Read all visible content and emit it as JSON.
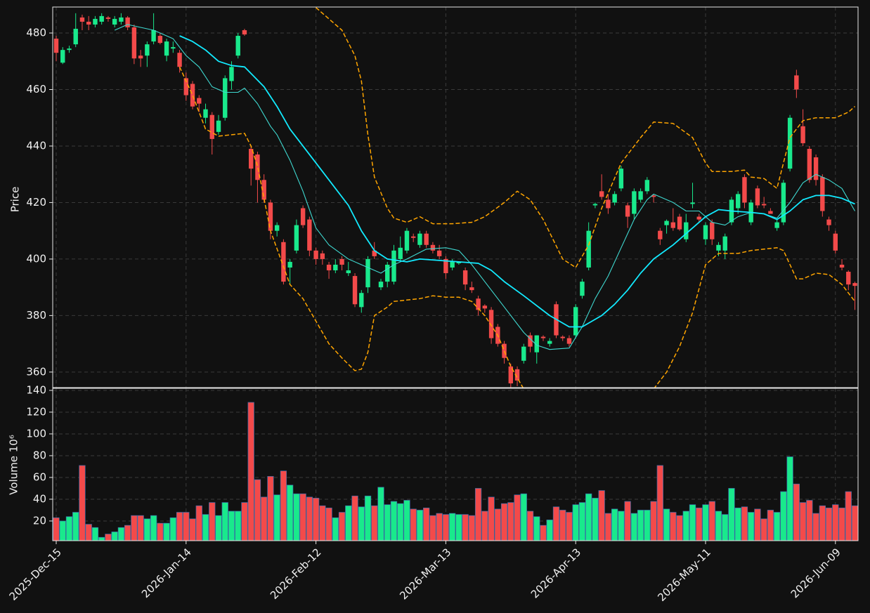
{
  "chart_data": {
    "type": "candlestick",
    "y_label": "Price",
    "categories": [
      "2025-Dec-15",
      null,
      null,
      null,
      null,
      null,
      null,
      null,
      null,
      null,
      null,
      null,
      null,
      null,
      null,
      null,
      null,
      null,
      null,
      null,
      "2026-Jan-14",
      null,
      null,
      null,
      null,
      null,
      null,
      null,
      null,
      null,
      null,
      null,
      null,
      null,
      null,
      null,
      null,
      null,
      null,
      null,
      "2026-Feb-12",
      null,
      null,
      null,
      null,
      null,
      null,
      null,
      null,
      null,
      null,
      null,
      null,
      null,
      null,
      null,
      null,
      null,
      null,
      null,
      "2026-Mar-13",
      null,
      null,
      null,
      null,
      null,
      null,
      null,
      null,
      null,
      null,
      null,
      null,
      null,
      null,
      null,
      null,
      null,
      null,
      null,
      "2026-Apr-13",
      null,
      null,
      null,
      null,
      null,
      null,
      null,
      null,
      null,
      null,
      null,
      null,
      null,
      null,
      null,
      null,
      null,
      null,
      null,
      "2026-May-11",
      null,
      null,
      null,
      null,
      null,
      null,
      null,
      null,
      null,
      null,
      null,
      null,
      null,
      null,
      null,
      null,
      null,
      null,
      null,
      "2026-Jun-09",
      null,
      null,
      null
    ],
    "open": [
      478,
      469.5,
      474,
      476,
      485.5,
      484,
      483,
      484,
      485.5,
      483,
      484,
      485.5,
      482,
      472,
      472,
      477,
      479,
      472,
      474.5,
      473,
      464,
      462,
      457,
      450,
      451,
      445,
      450,
      463,
      472,
      481,
      439,
      437,
      428,
      420,
      410,
      406,
      397,
      403,
      418,
      414,
      403,
      402,
      398,
      396,
      400,
      395,
      394,
      383,
      390,
      403,
      390,
      392,
      392,
      400,
      403,
      408,
      405,
      409,
      405,
      403,
      400,
      397,
      398.5,
      396,
      390,
      386,
      383.5,
      382,
      376,
      370,
      362,
      361,
      364,
      373,
      367,
      372.5,
      370,
      384,
      372.5,
      372,
      373,
      387,
      397,
      419,
      424,
      421,
      420,
      425,
      419,
      416,
      421,
      424,
      422.5,
      410,
      412,
      413,
      415,
      407,
      419.5,
      415,
      407,
      413,
      403,
      403,
      413,
      418,
      429,
      413,
      425,
      419.5,
      417,
      411,
      413,
      432,
      465,
      447,
      439,
      436,
      429,
      414,
      409,
      398,
      395.5,
      391.5
    ],
    "high": [
      479,
      475,
      475.5,
      487,
      486.5,
      486,
      486,
      487,
      486,
      486,
      487,
      486,
      483,
      474,
      477,
      487,
      480,
      478,
      477,
      474,
      466,
      463,
      458,
      455,
      452,
      451,
      465,
      470,
      480,
      481.5,
      440,
      438,
      430,
      421,
      413,
      407,
      400,
      414,
      419,
      415,
      404,
      403,
      399,
      400,
      401,
      399,
      395,
      389,
      401,
      406,
      393,
      399,
      405,
      408,
      411,
      409,
      410,
      410,
      406,
      405,
      401,
      400,
      399,
      397,
      392,
      387,
      384,
      383,
      377,
      371,
      363,
      362,
      370,
      374,
      373,
      373,
      372,
      385,
      373,
      373,
      384,
      393,
      413,
      420,
      430,
      423,
      424,
      433,
      420,
      425,
      425,
      429,
      423,
      411,
      414,
      418,
      416,
      416,
      427,
      416,
      413,
      414,
      406,
      409,
      422,
      424,
      430,
      421,
      426,
      422,
      418,
      414,
      428,
      451,
      467,
      453,
      440,
      437,
      430,
      415,
      410,
      400,
      396,
      392
    ],
    "low": [
      470,
      469,
      473,
      475,
      481,
      481,
      482,
      483,
      484,
      482,
      483,
      481,
      469,
      468,
      468,
      476,
      476,
      470,
      473,
      466,
      456,
      453,
      452,
      448,
      437,
      444,
      449,
      460,
      471,
      479,
      426,
      420,
      420,
      407,
      408,
      391,
      391,
      402,
      411,
      401,
      398,
      398,
      393,
      395,
      396,
      394,
      383,
      381,
      388,
      400,
      389,
      390,
      391,
      399,
      402,
      406,
      404,
      404,
      402,
      400,
      393,
      396,
      398,
      389,
      388,
      380,
      381,
      370,
      369,
      363,
      353,
      355,
      363,
      367,
      363,
      371,
      369,
      372,
      371,
      369,
      372,
      386,
      396,
      418,
      421,
      416,
      419,
      424,
      411,
      414,
      420,
      423,
      420,
      405,
      409,
      410,
      410,
      406,
      418,
      413,
      405,
      405,
      401,
      400,
      412,
      416,
      418,
      412,
      418,
      418,
      416,
      410,
      412,
      431,
      457,
      440,
      427,
      426,
      415,
      410,
      402,
      396,
      389,
      382
    ],
    "close": [
      473,
      474,
      474.5,
      481.5,
      484,
      483,
      485,
      486,
      485,
      485,
      485.5,
      482,
      471,
      471,
      476,
      481,
      476.5,
      477,
      475,
      468,
      458,
      454,
      455,
      453,
      442.5,
      449,
      464,
      468,
      479,
      479.5,
      432,
      428,
      421,
      410,
      412,
      392,
      399,
      412,
      412,
      403,
      400,
      400,
      396,
      398,
      398,
      396,
      384,
      388,
      400,
      401,
      392,
      398,
      403,
      404,
      410,
      407.5,
      409,
      405,
      403,
      401,
      395,
      399,
      399,
      391,
      389,
      382,
      382.5,
      372,
      370,
      365,
      356,
      357,
      369,
      369,
      373,
      372,
      371,
      373,
      372,
      370,
      383,
      392,
      410,
      419.5,
      422,
      418,
      423,
      432,
      415,
      424,
      424,
      428,
      422,
      407,
      413.5,
      411,
      410.5,
      413,
      420,
      414,
      412,
      407,
      405,
      408,
      421,
      423,
      420,
      420,
      419,
      419,
      416,
      413,
      427,
      450,
      460,
      441,
      428,
      428,
      417,
      412,
      403,
      397,
      391,
      390.5
    ],
    "up_color": "#19e98c",
    "down_color": "#f34a4a",
    "ylim": [
      354.5,
      489.2
    ],
    "yticks": [
      360,
      380,
      400,
      420,
      440,
      460,
      480
    ],
    "grid": true,
    "overlays": [
      {
        "color": "#3fd8d0",
        "weight": "thin",
        "style": "solid",
        "x": [
          9,
          11,
          13,
          15,
          18,
          20,
          22,
          24,
          26,
          28,
          29,
          31,
          33,
          34,
          36,
          38,
          40,
          42,
          45,
          47,
          50,
          52,
          54,
          57,
          60,
          62,
          64,
          66,
          69,
          72,
          74,
          76,
          79,
          81,
          83,
          85,
          87,
          89,
          91,
          92,
          95,
          97,
          99,
          101,
          103,
          105,
          107,
          109,
          111,
          113,
          115,
          117,
          119,
          121,
          123
        ],
        "values": [
          481,
          483,
          482,
          481,
          478,
          472,
          468,
          461,
          459,
          459,
          460.5,
          455,
          447,
          444,
          435,
          424,
          411,
          405,
          400,
          398,
          395,
          398,
          400,
          403.5,
          404,
          403,
          398,
          392,
          383,
          374,
          369.5,
          368,
          368.5,
          376,
          386,
          394,
          404,
          414,
          421,
          423,
          420,
          417,
          417,
          413,
          412,
          415,
          416.5,
          416,
          414.5,
          420,
          427,
          430,
          428,
          425,
          417
        ]
      },
      {
        "color": "#12eaff",
        "weight": "thick",
        "style": "solid",
        "x": [
          19,
          21,
          23,
          25,
          27,
          29,
          32,
          34,
          36,
          40,
          43,
          45,
          47,
          49,
          51,
          54,
          56,
          59,
          62,
          65,
          67,
          69,
          72,
          76,
          79,
          81,
          84,
          86,
          88,
          90,
          92,
          95,
          98,
          100,
          102,
          104,
          107,
          109,
          111,
          113,
          115,
          117,
          119,
          121,
          123
        ],
        "values": [
          479,
          477,
          474,
          470,
          468.5,
          468,
          461,
          454,
          446,
          434,
          425,
          419,
          410,
          403,
          400,
          399,
          400,
          399.5,
          399,
          398.5,
          396,
          392,
          387,
          380,
          376,
          376,
          380,
          384,
          389,
          395,
          400,
          405,
          411,
          415,
          417.5,
          417,
          416.5,
          416,
          414,
          417,
          421,
          422.5,
          422.5,
          421.5,
          419.5
        ]
      },
      {
        "color": "#ffa500",
        "weight": "thin",
        "style": "dashed",
        "x": [
          40,
          42,
          44,
          46,
          47,
          48,
          49,
          51,
          52,
          54,
          56,
          58,
          61,
          64,
          66,
          69,
          71,
          73,
          75,
          78,
          80,
          82,
          84,
          87,
          90,
          92,
          95,
          98,
          100,
          101,
          104,
          106,
          107,
          109,
          111,
          113,
          115,
          117,
          120,
          122,
          123
        ],
        "values": [
          489,
          485,
          481,
          472,
          463,
          444,
          429,
          418,
          414.5,
          413,
          415,
          412.5,
          412.5,
          413,
          415,
          420,
          424,
          421,
          414,
          400,
          397,
          405,
          418,
          434,
          443,
          448.5,
          448,
          443,
          434,
          431,
          431,
          431.5,
          429,
          428.5,
          425,
          443,
          449,
          450,
          450,
          452,
          454
        ]
      },
      {
        "color": "#ffa500",
        "weight": "thin",
        "style": "dashed",
        "x": [
          19,
          21,
          23,
          25,
          27,
          29,
          30,
          31,
          33,
          36,
          38,
          40,
          42,
          44,
          46,
          47,
          48,
          49,
          51,
          52,
          54,
          56,
          58,
          60,
          62,
          64,
          66,
          68,
          70,
          72,
          83,
          92,
          94,
          96,
          98,
          100,
          102,
          105,
          107,
          109,
          111,
          112,
          114,
          115,
          117,
          119,
          121,
          123
        ],
        "values": [
          468,
          458,
          446,
          443.5,
          444,
          444.5,
          440,
          433,
          410,
          391,
          386,
          378,
          370,
          365,
          360.5,
          361,
          367,
          380,
          383,
          385,
          385.5,
          386,
          387,
          386.5,
          386.5,
          385,
          380,
          373,
          362,
          354,
          null,
          354,
          360,
          369,
          381,
          398,
          402,
          402,
          403,
          403.5,
          404,
          403,
          393,
          393,
          395,
          394.5,
          391,
          385
        ]
      }
    ],
    "volume": {
      "label": "Volume  10⁶",
      "edge_color": "#3b6aa8",
      "values": [
        23,
        20,
        24,
        28,
        71,
        17,
        14,
        5,
        8,
        10,
        14,
        16,
        25,
        25,
        22,
        25,
        18,
        18,
        23,
        28,
        28,
        22,
        34,
        26,
        37,
        25,
        37,
        29,
        29,
        37,
        129,
        58,
        42,
        61,
        44,
        66,
        53,
        45,
        45,
        42,
        41,
        34,
        32,
        23,
        28,
        34,
        43,
        33,
        43,
        34,
        51,
        35,
        38,
        36,
        39,
        31,
        30,
        32,
        25,
        27,
        26,
        27,
        26,
        26,
        25,
        50,
        29,
        42,
        31,
        36,
        37,
        44,
        45,
        29,
        24,
        16,
        21,
        33,
        30,
        28,
        35,
        37,
        45,
        41,
        48,
        27,
        31,
        29,
        38,
        27,
        30,
        30,
        38,
        71,
        31,
        28,
        25,
        29,
        35,
        32,
        35,
        38,
        29,
        26,
        50,
        32,
        33,
        28,
        31,
        22,
        30,
        28,
        47,
        79,
        54,
        37,
        39,
        27,
        34,
        32,
        35,
        32,
        47,
        34
      ],
      "ylim": [
        1.9,
        141.9
      ],
      "yticks": [
        20,
        40,
        60,
        80,
        100,
        120,
        140
      ]
    }
  }
}
